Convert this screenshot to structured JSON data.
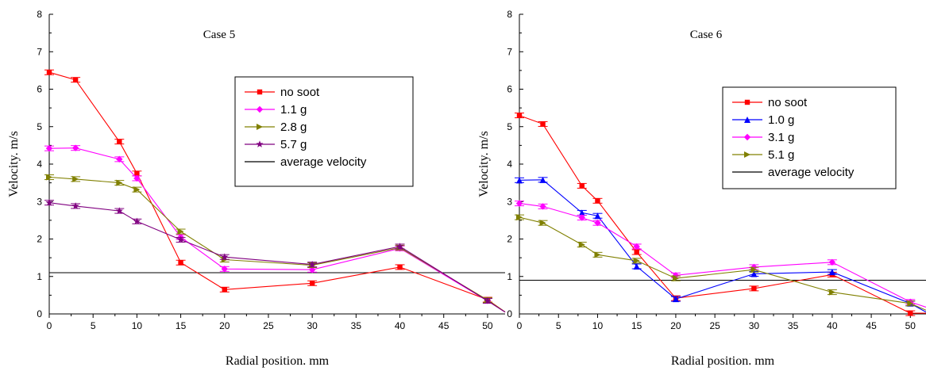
{
  "chart_data": [
    {
      "type": "line",
      "title": "Case 5",
      "xlabel": "Radial position. mm",
      "ylabel": "Velocity. m/s",
      "xlim": [
        0,
        52
      ],
      "ylim": [
        0,
        8
      ],
      "xticks": [
        0,
        5,
        10,
        15,
        20,
        25,
        30,
        35,
        40,
        45,
        50
      ],
      "yticks": [
        0,
        1,
        2,
        3,
        4,
        5,
        6,
        7,
        8
      ],
      "grid": false,
      "legend_position": "top-right",
      "series": [
        {
          "name": "no soot",
          "color": "#ff0000",
          "marker": "square",
          "x": [
            0,
            3,
            8,
            10,
            15,
            20,
            30,
            40,
            50,
            52
          ],
          "y": [
            6.45,
            6.25,
            4.6,
            3.75,
            1.37,
            0.65,
            0.82,
            1.25,
            0.38,
            0.05
          ]
        },
        {
          "name": "1.1 g",
          "color": "#ff00ff",
          "marker": "diamond",
          "x": [
            0,
            3,
            8,
            10,
            15,
            20,
            30,
            40,
            50,
            52
          ],
          "y": [
            4.42,
            4.43,
            4.13,
            3.62,
            2.05,
            1.2,
            1.18,
            1.75,
            0.35,
            0.05
          ]
        },
        {
          "name": "2.8 g",
          "color": "#808000",
          "marker": "triangle-right",
          "x": [
            0,
            3,
            8,
            10,
            15,
            20,
            30,
            40,
            50,
            52
          ],
          "y": [
            3.65,
            3.6,
            3.5,
            3.32,
            2.2,
            1.45,
            1.3,
            1.77,
            0.37,
            0.05
          ]
        },
        {
          "name": "5.7 g",
          "color": "#800080",
          "marker": "star",
          "x": [
            0,
            3,
            8,
            10,
            15,
            20,
            30,
            40,
            50,
            52
          ],
          "y": [
            2.97,
            2.88,
            2.75,
            2.47,
            1.98,
            1.52,
            1.32,
            1.8,
            0.35,
            0.05
          ]
        }
      ],
      "reference_line": {
        "name": "average velocity",
        "y": 1.1,
        "color": "#000000"
      }
    },
    {
      "type": "line",
      "title": "Case 6",
      "xlabel": "Radial position. mm",
      "ylabel": "Velocity. m/s",
      "xlim": [
        0,
        52
      ],
      "ylim": [
        0,
        8
      ],
      "xticks": [
        0,
        5,
        10,
        15,
        20,
        25,
        30,
        35,
        40,
        45,
        50
      ],
      "yticks": [
        0,
        1,
        2,
        3,
        4,
        5,
        6,
        7,
        8
      ],
      "grid": false,
      "legend_position": "top-right",
      "series": [
        {
          "name": "no soot",
          "color": "#ff0000",
          "marker": "square",
          "x": [
            0,
            3,
            8,
            10,
            15,
            20,
            30,
            40,
            50,
            52
          ],
          "y": [
            5.3,
            5.07,
            3.42,
            3.02,
            1.65,
            0.42,
            0.68,
            1.05,
            0.02,
            0.02
          ]
        },
        {
          "name": "1.0 g",
          "color": "#0000ff",
          "marker": "triangle-up",
          "x": [
            0,
            3,
            8,
            10,
            15,
            20,
            30,
            40,
            50,
            52
          ],
          "y": [
            3.57,
            3.58,
            2.7,
            2.62,
            1.27,
            0.4,
            1.07,
            1.12,
            0.28,
            0.05
          ]
        },
        {
          "name": "3.1 g",
          "color": "#ff00ff",
          "marker": "diamond",
          "x": [
            0,
            3,
            8,
            10,
            15,
            20,
            30,
            40,
            50,
            52
          ],
          "y": [
            2.95,
            2.87,
            2.57,
            2.43,
            1.8,
            1.03,
            1.25,
            1.38,
            0.32,
            0.18
          ]
        },
        {
          "name": "5.1 g",
          "color": "#808000",
          "marker": "triangle-right",
          "x": [
            0,
            3,
            8,
            10,
            15,
            20,
            30,
            40,
            50,
            52
          ],
          "y": [
            2.58,
            2.43,
            1.85,
            1.58,
            1.42,
            0.95,
            1.18,
            0.58,
            0.28,
            0.1
          ]
        }
      ],
      "reference_line": {
        "name": "average velocity",
        "y": 0.9,
        "color": "#000000"
      }
    }
  ]
}
